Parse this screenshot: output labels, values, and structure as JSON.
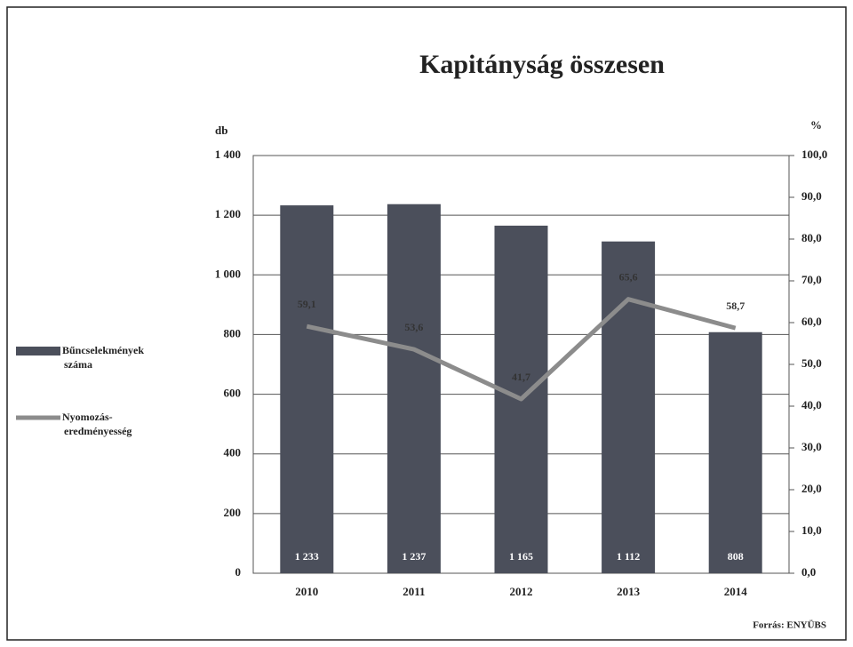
{
  "chart_data": {
    "type": "bar",
    "title": "Kapitányság összesen",
    "y_label": "db",
    "y2_label": "%",
    "categories": [
      "2010",
      "2011",
      "2012",
      "2013",
      "2014"
    ],
    "series": [
      {
        "name": "Bűncselekmények száma",
        "type": "bar",
        "color": "#4b4f5b",
        "values": [
          1233,
          1237,
          1165,
          1112,
          808
        ],
        "value_labels": [
          "1 233",
          "1 237",
          "1 165",
          "1 112",
          "808"
        ]
      },
      {
        "name": "Nyomozás-eredményesség",
        "type": "line",
        "axis": "y2",
        "color": "#8c8c8c",
        "values": [
          59.1,
          53.6,
          41.7,
          65.6,
          58.7
        ],
        "value_labels": [
          "59,1",
          "53,6",
          "41,7",
          "65,6",
          "58,7"
        ]
      }
    ],
    "ylim": [
      0,
      1400
    ],
    "yticks": [
      0,
      200,
      400,
      600,
      800,
      {
        "value": 1000,
        "label": "1 000"
      },
      {
        "value": 1200,
        "label": "1 200"
      },
      {
        "value": 1400,
        "label": "1 400"
      }
    ],
    "y2lim": [
      0,
      100
    ],
    "y2ticks": [
      {
        "value": 0,
        "label": "0,0"
      },
      {
        "value": 10,
        "label": "10,0"
      },
      {
        "value": 20,
        "label": "20,0"
      },
      {
        "value": 30,
        "label": "30,0"
      },
      {
        "value": 40,
        "label": "40,0"
      },
      {
        "value": 50,
        "label": "50,0"
      },
      {
        "value": 60,
        "label": "60,0"
      },
      {
        "value": 70,
        "label": "70,0"
      },
      {
        "value": 80,
        "label": "80,0"
      },
      {
        "value": 90,
        "label": "90,0"
      },
      {
        "value": 100,
        "label": "100,0"
      }
    ],
    "grid": true,
    "legend": "left",
    "source": "Forrás: ENYÜBS"
  }
}
